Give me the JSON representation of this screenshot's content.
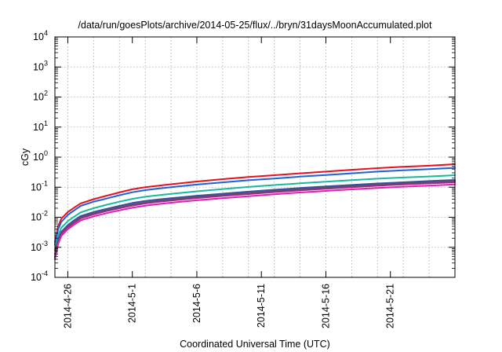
{
  "chart_data": {
    "type": "line",
    "title": "/data/run/goesPlots/archive/2014-05-25/flux/../bryn/31daysMoonAccumulated.plot",
    "xlabel": "Coordinated Universal Time (UTC)",
    "ylabel": "cGy",
    "yscale": "log",
    "ylim": [
      0.0001,
      10000
    ],
    "xlim": [
      "2014-04-25",
      "2014-05-26"
    ],
    "grid": true,
    "y_ticks": [
      {
        "value": 0.0001,
        "base": "10",
        "exp": "-4"
      },
      {
        "value": 0.001,
        "base": "10",
        "exp": "-3"
      },
      {
        "value": 0.01,
        "base": "10",
        "exp": "-2"
      },
      {
        "value": 0.1,
        "base": "10",
        "exp": "-1"
      },
      {
        "value": 1,
        "base": "10",
        "exp": "0"
      },
      {
        "value": 10,
        "base": "10",
        "exp": "1"
      },
      {
        "value": 100,
        "base": "10",
        "exp": "2"
      },
      {
        "value": 1000,
        "base": "10",
        "exp": "3"
      },
      {
        "value": 10000,
        "base": "10",
        "exp": "4"
      }
    ],
    "x_ticks": [
      {
        "value": "2014-04-26",
        "label": "2014-4-26"
      },
      {
        "value": "2014-05-01",
        "label": "2014-5-1"
      },
      {
        "value": "2014-05-06",
        "label": "2014-5-6"
      },
      {
        "value": "2014-05-11",
        "label": "2014-5-11"
      },
      {
        "value": "2014-05-16",
        "label": "2014-5-16"
      },
      {
        "value": "2014-05-21",
        "label": "2014-5-21"
      }
    ],
    "x_grid_dates": [
      "2014-04-26",
      "2014-04-28",
      "2014-04-30",
      "2014-05-02",
      "2014-05-04",
      "2014-05-06",
      "2014-05-08",
      "2014-05-10",
      "2014-05-12",
      "2014-05-14",
      "2014-05-16",
      "2014-05-18",
      "2014-05-20",
      "2014-05-22",
      "2014-05-24"
    ],
    "x": [
      "2014-04-25",
      "2014-04-25T06:00",
      "2014-04-25T12:00",
      "2014-04-26",
      "2014-04-26T12:00",
      "2014-04-27",
      "2014-04-28",
      "2014-04-29",
      "2014-04-30",
      "2014-05-01",
      "2014-05-02",
      "2014-05-03",
      "2014-05-04",
      "2014-05-06",
      "2014-05-08",
      "2014-05-10",
      "2014-05-12",
      "2014-05-14",
      "2014-05-16",
      "2014-05-18",
      "2014-05-20",
      "2014-05-22",
      "2014-05-24",
      "2014-05-26"
    ],
    "series": [
      {
        "color": "#e8101e",
        "values": [
          0.0015,
          0.005,
          0.009,
          0.015,
          0.021,
          0.029,
          0.04,
          0.052,
          0.067,
          0.085,
          0.1,
          0.112,
          0.125,
          0.155,
          0.185,
          0.22,
          0.25,
          0.29,
          0.33,
          0.38,
          0.43,
          0.48,
          0.52,
          0.58
        ]
      },
      {
        "color": "#1f5fe0",
        "values": [
          0.0012,
          0.004,
          0.007,
          0.012,
          0.017,
          0.024,
          0.033,
          0.042,
          0.054,
          0.068,
          0.08,
          0.09,
          0.1,
          0.122,
          0.145,
          0.17,
          0.195,
          0.225,
          0.255,
          0.29,
          0.33,
          0.365,
          0.4,
          0.44
        ]
      },
      {
        "color": "#1ab89e",
        "values": [
          0.0008,
          0.0025,
          0.0045,
          0.0075,
          0.0105,
          0.0145,
          0.02,
          0.026,
          0.033,
          0.041,
          0.048,
          0.054,
          0.06,
          0.073,
          0.087,
          0.102,
          0.118,
          0.135,
          0.153,
          0.172,
          0.192,
          0.21,
          0.228,
          0.25
        ]
      },
      {
        "color": "#3a4fa8",
        "values": [
          0.0006,
          0.0018,
          0.0033,
          0.0055,
          0.008,
          0.011,
          0.015,
          0.019,
          0.024,
          0.03,
          0.035,
          0.039,
          0.043,
          0.052,
          0.061,
          0.071,
          0.082,
          0.094,
          0.106,
          0.119,
          0.133,
          0.146,
          0.16,
          0.175
        ]
      },
      {
        "color": "#555555",
        "values": [
          0.0005,
          0.0016,
          0.003,
          0.005,
          0.0072,
          0.01,
          0.0135,
          0.0172,
          0.0215,
          0.0265,
          0.031,
          0.035,
          0.039,
          0.047,
          0.055,
          0.064,
          0.074,
          0.085,
          0.096,
          0.108,
          0.121,
          0.133,
          0.145,
          0.158
        ]
      },
      {
        "color": "#9a2d8c",
        "values": [
          0.00045,
          0.0015,
          0.0028,
          0.0046,
          0.0066,
          0.0092,
          0.0125,
          0.016,
          0.02,
          0.0245,
          0.0288,
          0.0325,
          0.036,
          0.0435,
          0.051,
          0.059,
          0.0685,
          0.0785,
          0.089,
          0.1,
          0.112,
          0.123,
          0.134,
          0.146
        ]
      },
      {
        "color": "#e21fb0",
        "values": [
          0.0004,
          0.0013,
          0.0024,
          0.004,
          0.0057,
          0.0079,
          0.0107,
          0.0137,
          0.017,
          0.0207,
          0.0243,
          0.0275,
          0.0305,
          0.0368,
          0.043,
          0.05,
          0.058,
          0.0665,
          0.075,
          0.0845,
          0.094,
          0.104,
          0.113,
          0.124
        ]
      }
    ]
  }
}
